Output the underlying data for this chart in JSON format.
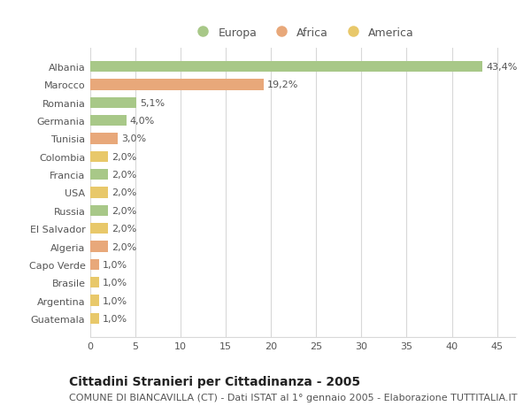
{
  "countries": [
    "Albania",
    "Marocco",
    "Romania",
    "Germania",
    "Tunisia",
    "Colombia",
    "Francia",
    "USA",
    "Russia",
    "El Salvador",
    "Algeria",
    "Capo Verde",
    "Brasile",
    "Argentina",
    "Guatemala"
  ],
  "values": [
    43.4,
    19.2,
    5.1,
    4.0,
    3.0,
    2.0,
    2.0,
    2.0,
    2.0,
    2.0,
    2.0,
    1.0,
    1.0,
    1.0,
    1.0
  ],
  "labels": [
    "43,4%",
    "19,2%",
    "5,1%",
    "4,0%",
    "3,0%",
    "2,0%",
    "2,0%",
    "2,0%",
    "2,0%",
    "2,0%",
    "2,0%",
    "1,0%",
    "1,0%",
    "1,0%",
    "1,0%"
  ],
  "continents": [
    "Europa",
    "Africa",
    "Europa",
    "Europa",
    "Africa",
    "America",
    "Europa",
    "America",
    "Europa",
    "America",
    "Africa",
    "Africa",
    "America",
    "America",
    "America"
  ],
  "colors": {
    "Europa": "#a8c888",
    "Africa": "#e8a87a",
    "America": "#e8c86a"
  },
  "background_color": "#ffffff",
  "plot_bg_color": "#ffffff",
  "title": "Cittadini Stranieri per Cittadinanza - 2005",
  "subtitle": "COMUNE DI BIANCAVILLA (CT) - Dati ISTAT al 1° gennaio 2005 - Elaborazione TUTTITALIA.IT",
  "xlim": [
    0,
    47
  ],
  "xticks": [
    0,
    5,
    10,
    15,
    20,
    25,
    30,
    35,
    40,
    45
  ],
  "grid_color": "#d8d8d8",
  "bar_height": 0.6,
  "title_fontsize": 10,
  "subtitle_fontsize": 8,
  "tick_fontsize": 8,
  "label_fontsize": 8,
  "legend_fontsize": 9
}
